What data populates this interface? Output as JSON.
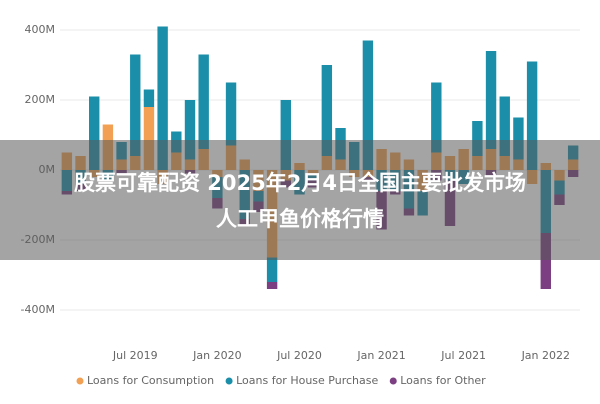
{
  "chart_data": {
    "type": "bar",
    "stacked": true,
    "overlay_title": [
      "股票可靠配资 2025年2月4日全国主要批发市场",
      "人工甲鱼价格行情"
    ],
    "categories": [
      null,
      null,
      null,
      null,
      null,
      "Jul 2019",
      null,
      null,
      null,
      null,
      null,
      "Jan 2020",
      null,
      null,
      null,
      null,
      null,
      "Jul 2020",
      null,
      null,
      null,
      null,
      null,
      "Jan 2021",
      null,
      null,
      null,
      null,
      null,
      "Jul 2021",
      null,
      null,
      null,
      null,
      null,
      "Jan 2022",
      null,
      null
    ],
    "series": [
      {
        "name": "Loans for Consumption",
        "color": "#f2a053",
        "values": [
          50,
          40,
          -20,
          130,
          30,
          40,
          180,
          -40,
          50,
          30,
          60,
          -20,
          70,
          30,
          -60,
          -250,
          -30,
          20,
          -10,
          40,
          30,
          -20,
          -20,
          60,
          50,
          30,
          -60,
          50,
          40,
          60,
          40,
          60,
          40,
          30,
          -40,
          20,
          -30,
          30
        ]
      },
      {
        "name": "Loans for House Purchase",
        "color": "#1b8fa9",
        "values": [
          -60,
          -40,
          210,
          -30,
          50,
          290,
          50,
          410,
          60,
          170,
          270,
          -60,
          180,
          -140,
          -30,
          -70,
          200,
          -70,
          -20,
          260,
          90,
          80,
          370,
          -60,
          -60,
          -110,
          -70,
          200,
          -30,
          -40,
          100,
          280,
          170,
          120,
          310,
          -180,
          -40,
          40
        ]
      },
      {
        "name": "Loans for Other",
        "color": "#7b3f82",
        "values": [
          -10,
          -20,
          0,
          0,
          -10,
          0,
          0,
          0,
          0,
          -10,
          0,
          -30,
          0,
          -20,
          -30,
          -20,
          -20,
          0,
          -20,
          0,
          0,
          0,
          -10,
          -110,
          -10,
          -20,
          0,
          -30,
          -130,
          0,
          0,
          -20,
          0,
          0,
          0,
          -160,
          -30,
          -20
        ]
      }
    ],
    "ylim": [
      -480,
      480
    ],
    "yticks": [
      {
        "value": 400,
        "label": "400M"
      },
      {
        "value": 200,
        "label": "200M"
      },
      {
        "value": 0,
        "label": "0M"
      },
      {
        "value": -200,
        "label": "-200M"
      },
      {
        "value": -400,
        "label": "-400M"
      }
    ],
    "grid": true
  }
}
